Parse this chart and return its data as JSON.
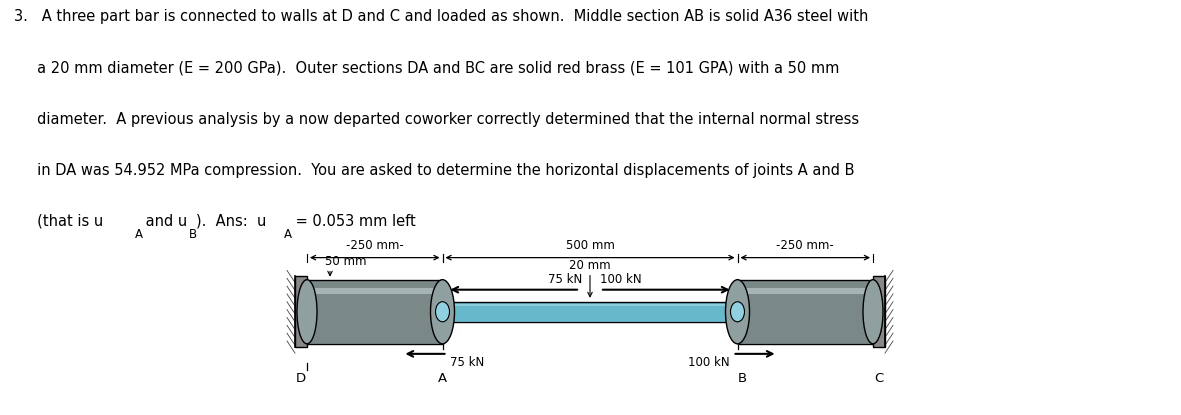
{
  "bg_color": "#ffffff",
  "text_lines": [
    "3.   A three part bar is connected to walls at D and C and loaded as shown.  Middle section AB is solid A36 steel with",
    "     a 20 mm diameter (E = 200 GPa).  Outer sections DA and BC are solid red brass (E = 101 GPA) with a 50 mm",
    "     diameter.  A previous analysis by a now departed coworker correctly determined that the internal normal stress",
    "     in DA was 54.952 MPa compression.  You are asked to determine the horizontal displacements of joints A and B"
  ],
  "last_line_parts": [
    {
      "text": "     (that is u",
      "sub": false
    },
    {
      "text": "A",
      "sub": true
    },
    {
      "text": " and u",
      "sub": false
    },
    {
      "text": "B",
      "sub": true
    },
    {
      "text": ").  Ans:  u",
      "sub": false
    },
    {
      "text": "A",
      "sub": true
    },
    {
      "text": " = 0.053 mm left",
      "sub": false
    }
  ],
  "diagram": {
    "wall_color_dark": "#606060",
    "wall_color_mid": "#888888",
    "brass_color_dark": "#5a6a6a",
    "brass_color_mid": "#7a8888",
    "brass_color_light": "#aababa",
    "brass_color_cap": "#909f9f",
    "steel_color_dark": "#4898a8",
    "steel_color_mid": "#68b8cc",
    "steel_color_light": "#90d0e0",
    "label_250_left": "-250 mm-",
    "label_500": "500 mm",
    "label_250_right": "-250 mm-",
    "label_50mm": "50 mm",
    "label_20mm": "20 mm",
    "label_75kN": "75 kN",
    "label_100kN": "100 kN",
    "label_D": "D",
    "label_A": "A",
    "label_B": "B",
    "label_C": "C"
  }
}
